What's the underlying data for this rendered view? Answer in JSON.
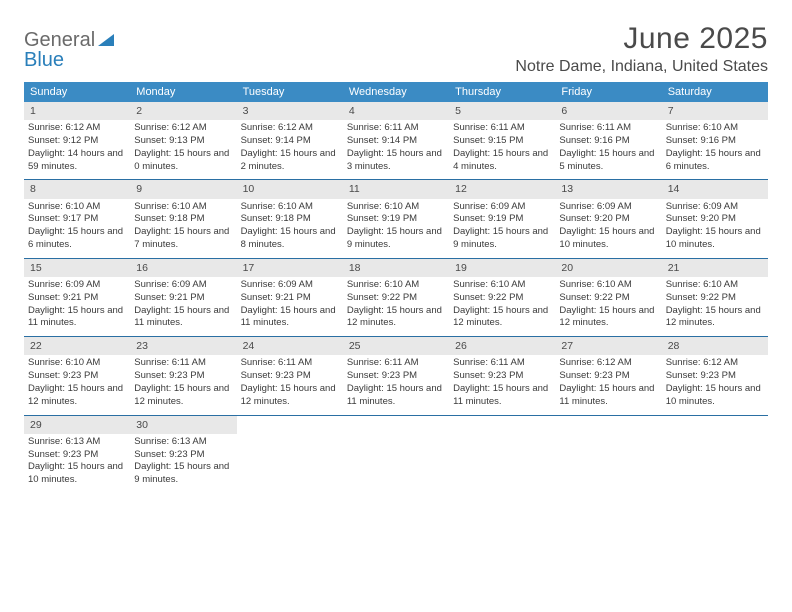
{
  "brand": {
    "text1": "General",
    "text2": "Blue"
  },
  "title": "June 2025",
  "location": "Notre Dame, Indiana, United States",
  "colors": {
    "header_bg": "#3b8bc4",
    "header_text": "#ffffff",
    "daynum_bg": "#e8e8e8",
    "row_border": "#2a6fa3",
    "body_text": "#3a3a3a",
    "title_text": "#4a4a4a",
    "brand_gray": "#6a6a6a",
    "brand_blue": "#2a7fba"
  },
  "typography": {
    "title_fontsize": 30,
    "location_fontsize": 16,
    "dow_fontsize": 11,
    "cell_fontsize": 9.5
  },
  "days_of_week": [
    "Sunday",
    "Monday",
    "Tuesday",
    "Wednesday",
    "Thursday",
    "Friday",
    "Saturday"
  ],
  "weeks": [
    [
      {
        "num": "1",
        "sunrise": "Sunrise: 6:12 AM",
        "sunset": "Sunset: 9:12 PM",
        "daylight": "Daylight: 14 hours and 59 minutes."
      },
      {
        "num": "2",
        "sunrise": "Sunrise: 6:12 AM",
        "sunset": "Sunset: 9:13 PM",
        "daylight": "Daylight: 15 hours and 0 minutes."
      },
      {
        "num": "3",
        "sunrise": "Sunrise: 6:12 AM",
        "sunset": "Sunset: 9:14 PM",
        "daylight": "Daylight: 15 hours and 2 minutes."
      },
      {
        "num": "4",
        "sunrise": "Sunrise: 6:11 AM",
        "sunset": "Sunset: 9:14 PM",
        "daylight": "Daylight: 15 hours and 3 minutes."
      },
      {
        "num": "5",
        "sunrise": "Sunrise: 6:11 AM",
        "sunset": "Sunset: 9:15 PM",
        "daylight": "Daylight: 15 hours and 4 minutes."
      },
      {
        "num": "6",
        "sunrise": "Sunrise: 6:11 AM",
        "sunset": "Sunset: 9:16 PM",
        "daylight": "Daylight: 15 hours and 5 minutes."
      },
      {
        "num": "7",
        "sunrise": "Sunrise: 6:10 AM",
        "sunset": "Sunset: 9:16 PM",
        "daylight": "Daylight: 15 hours and 6 minutes."
      }
    ],
    [
      {
        "num": "8",
        "sunrise": "Sunrise: 6:10 AM",
        "sunset": "Sunset: 9:17 PM",
        "daylight": "Daylight: 15 hours and 6 minutes."
      },
      {
        "num": "9",
        "sunrise": "Sunrise: 6:10 AM",
        "sunset": "Sunset: 9:18 PM",
        "daylight": "Daylight: 15 hours and 7 minutes."
      },
      {
        "num": "10",
        "sunrise": "Sunrise: 6:10 AM",
        "sunset": "Sunset: 9:18 PM",
        "daylight": "Daylight: 15 hours and 8 minutes."
      },
      {
        "num": "11",
        "sunrise": "Sunrise: 6:10 AM",
        "sunset": "Sunset: 9:19 PM",
        "daylight": "Daylight: 15 hours and 9 minutes."
      },
      {
        "num": "12",
        "sunrise": "Sunrise: 6:09 AM",
        "sunset": "Sunset: 9:19 PM",
        "daylight": "Daylight: 15 hours and 9 minutes."
      },
      {
        "num": "13",
        "sunrise": "Sunrise: 6:09 AM",
        "sunset": "Sunset: 9:20 PM",
        "daylight": "Daylight: 15 hours and 10 minutes."
      },
      {
        "num": "14",
        "sunrise": "Sunrise: 6:09 AM",
        "sunset": "Sunset: 9:20 PM",
        "daylight": "Daylight: 15 hours and 10 minutes."
      }
    ],
    [
      {
        "num": "15",
        "sunrise": "Sunrise: 6:09 AM",
        "sunset": "Sunset: 9:21 PM",
        "daylight": "Daylight: 15 hours and 11 minutes."
      },
      {
        "num": "16",
        "sunrise": "Sunrise: 6:09 AM",
        "sunset": "Sunset: 9:21 PM",
        "daylight": "Daylight: 15 hours and 11 minutes."
      },
      {
        "num": "17",
        "sunrise": "Sunrise: 6:09 AM",
        "sunset": "Sunset: 9:21 PM",
        "daylight": "Daylight: 15 hours and 11 minutes."
      },
      {
        "num": "18",
        "sunrise": "Sunrise: 6:10 AM",
        "sunset": "Sunset: 9:22 PM",
        "daylight": "Daylight: 15 hours and 12 minutes."
      },
      {
        "num": "19",
        "sunrise": "Sunrise: 6:10 AM",
        "sunset": "Sunset: 9:22 PM",
        "daylight": "Daylight: 15 hours and 12 minutes."
      },
      {
        "num": "20",
        "sunrise": "Sunrise: 6:10 AM",
        "sunset": "Sunset: 9:22 PM",
        "daylight": "Daylight: 15 hours and 12 minutes."
      },
      {
        "num": "21",
        "sunrise": "Sunrise: 6:10 AM",
        "sunset": "Sunset: 9:22 PM",
        "daylight": "Daylight: 15 hours and 12 minutes."
      }
    ],
    [
      {
        "num": "22",
        "sunrise": "Sunrise: 6:10 AM",
        "sunset": "Sunset: 9:23 PM",
        "daylight": "Daylight: 15 hours and 12 minutes."
      },
      {
        "num": "23",
        "sunrise": "Sunrise: 6:11 AM",
        "sunset": "Sunset: 9:23 PM",
        "daylight": "Daylight: 15 hours and 12 minutes."
      },
      {
        "num": "24",
        "sunrise": "Sunrise: 6:11 AM",
        "sunset": "Sunset: 9:23 PM",
        "daylight": "Daylight: 15 hours and 12 minutes."
      },
      {
        "num": "25",
        "sunrise": "Sunrise: 6:11 AM",
        "sunset": "Sunset: 9:23 PM",
        "daylight": "Daylight: 15 hours and 11 minutes."
      },
      {
        "num": "26",
        "sunrise": "Sunrise: 6:11 AM",
        "sunset": "Sunset: 9:23 PM",
        "daylight": "Daylight: 15 hours and 11 minutes."
      },
      {
        "num": "27",
        "sunrise": "Sunrise: 6:12 AM",
        "sunset": "Sunset: 9:23 PM",
        "daylight": "Daylight: 15 hours and 11 minutes."
      },
      {
        "num": "28",
        "sunrise": "Sunrise: 6:12 AM",
        "sunset": "Sunset: 9:23 PM",
        "daylight": "Daylight: 15 hours and 10 minutes."
      }
    ],
    [
      {
        "num": "29",
        "sunrise": "Sunrise: 6:13 AM",
        "sunset": "Sunset: 9:23 PM",
        "daylight": "Daylight: 15 hours and 10 minutes."
      },
      {
        "num": "30",
        "sunrise": "Sunrise: 6:13 AM",
        "sunset": "Sunset: 9:23 PM",
        "daylight": "Daylight: 15 hours and 9 minutes."
      },
      null,
      null,
      null,
      null,
      null
    ]
  ]
}
